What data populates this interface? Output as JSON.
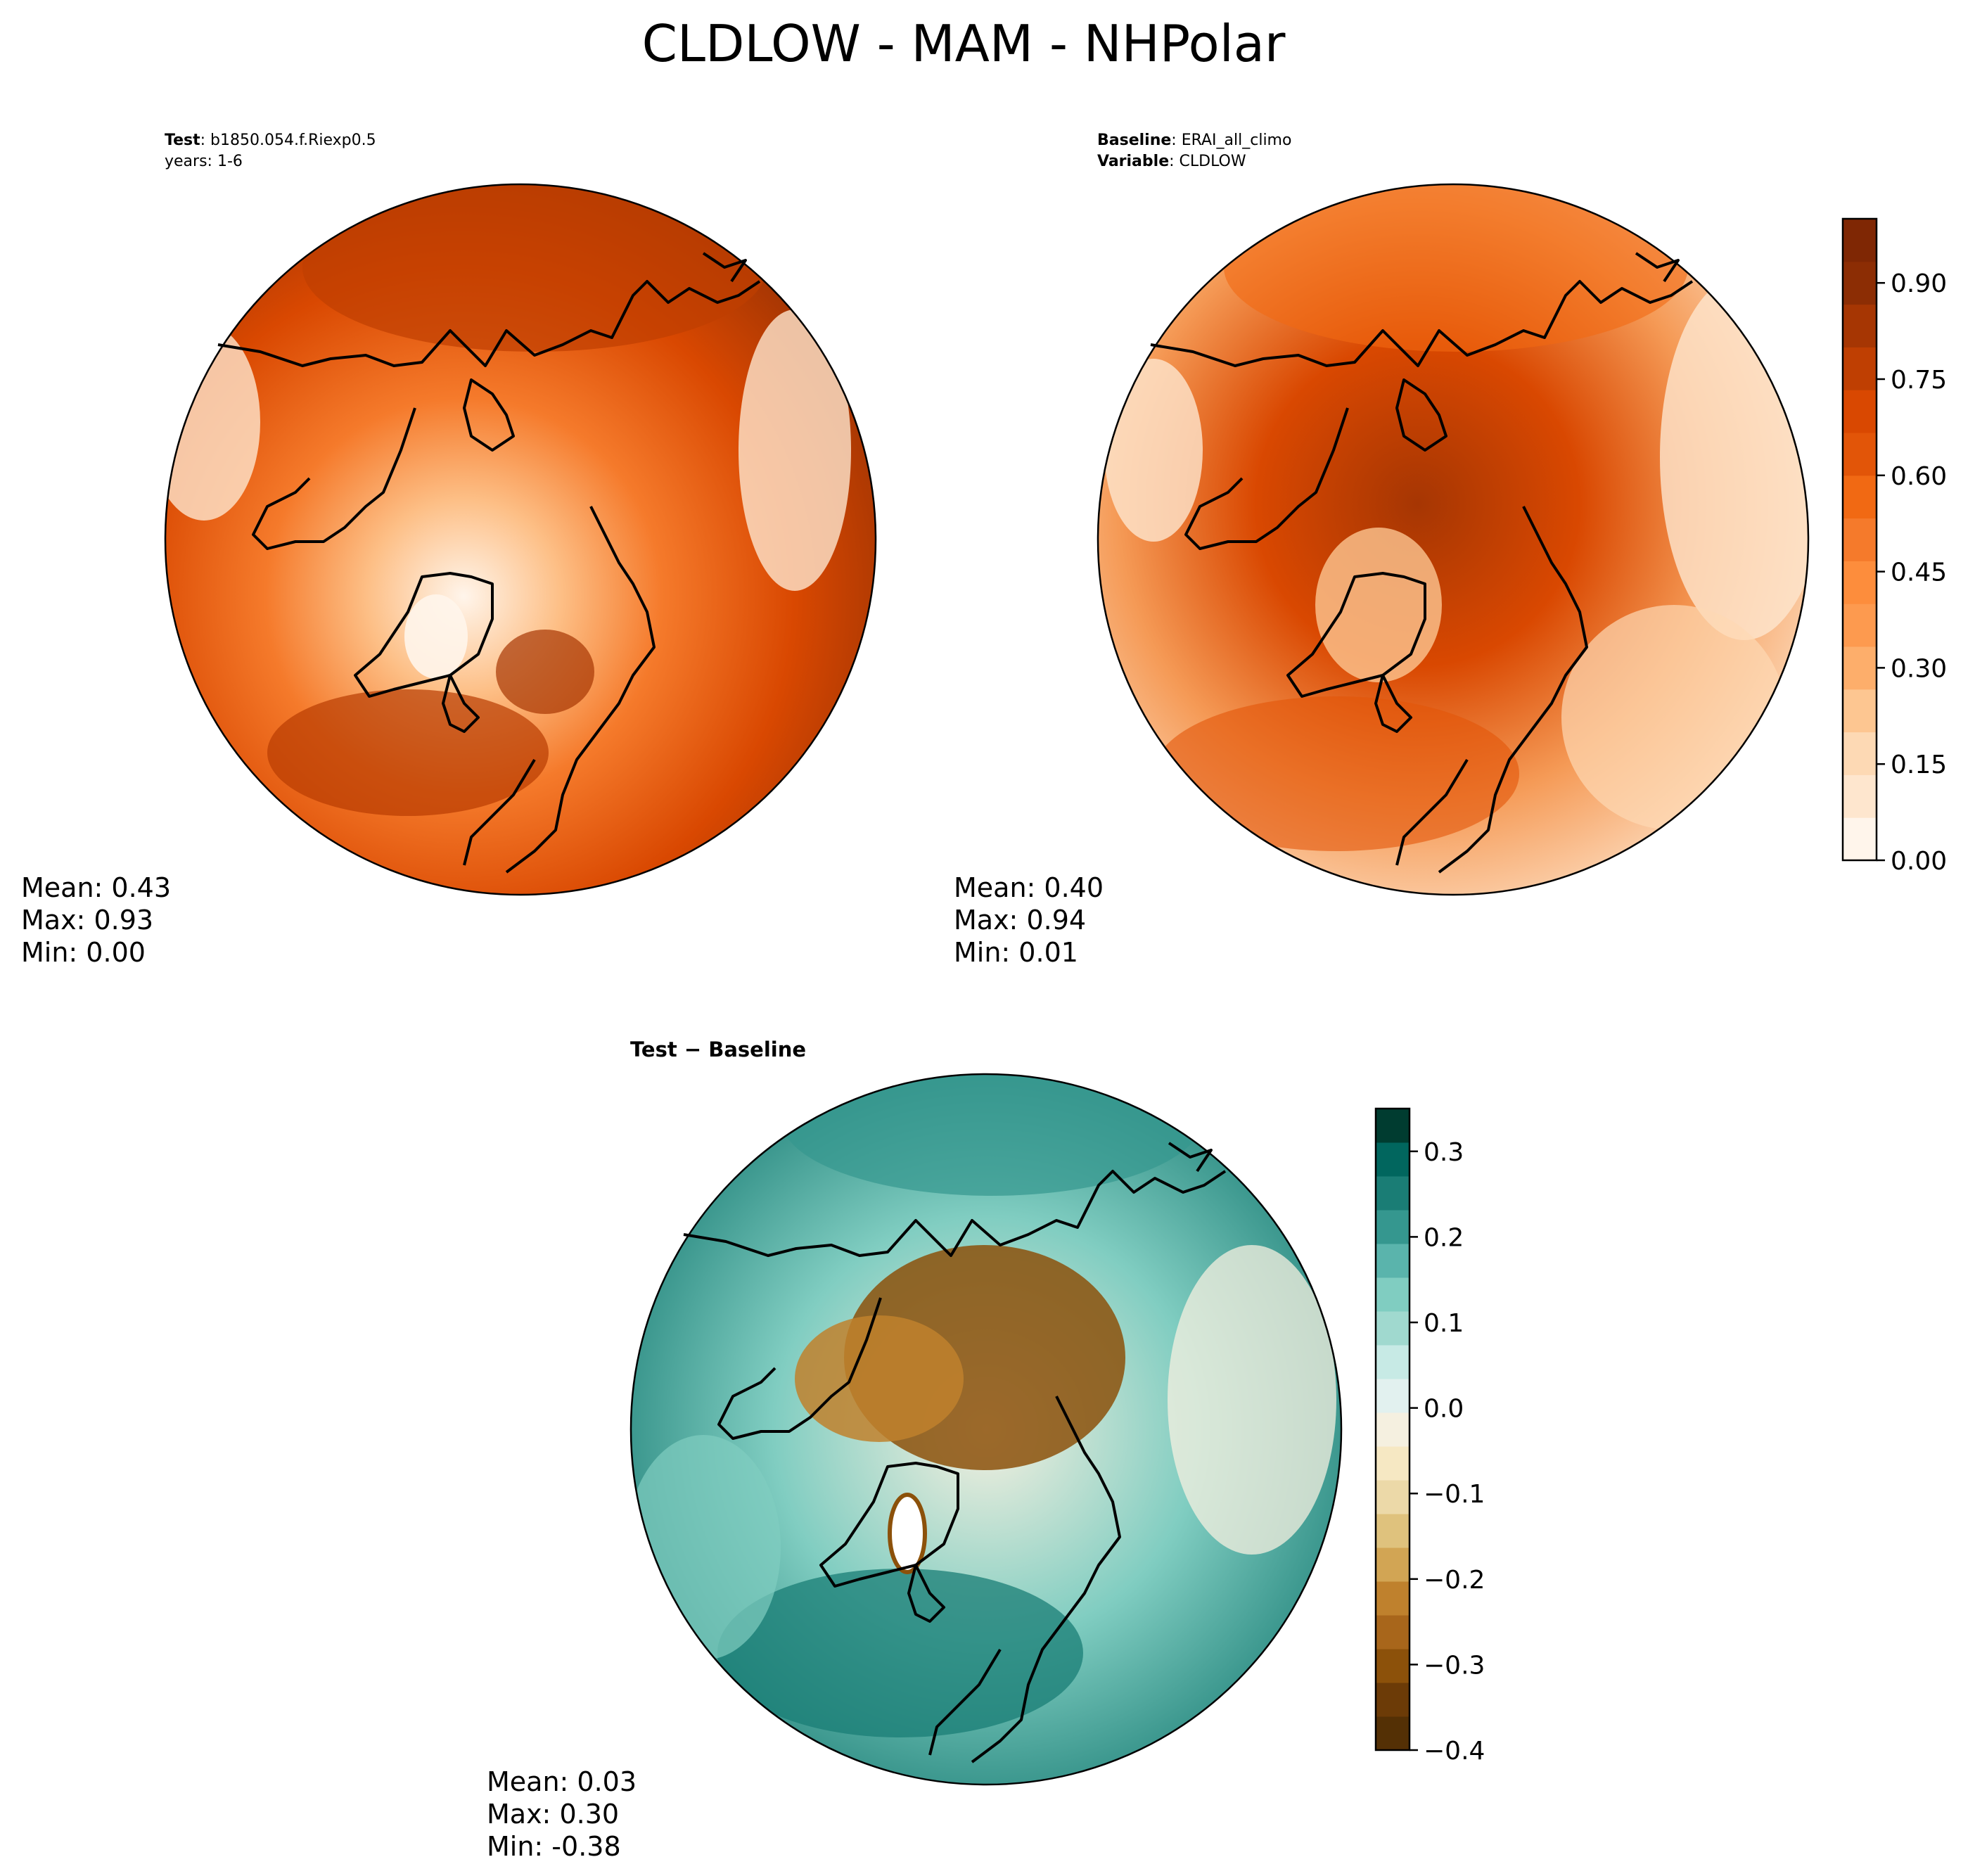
{
  "figure": {
    "title": "CLDLOW - MAM - NHPolar"
  },
  "panels": {
    "test": {
      "label_key": "Test",
      "label_value": ": b1850.054.f.Riexp0.5",
      "years": "years: 1-6",
      "stats": {
        "mean": "Mean:  0.43",
        "max": "Max:  0.93",
        "min": "Min:  0.00"
      }
    },
    "baseline": {
      "label_key": "Baseline",
      "label_value": ": ERAI_all_climo",
      "var_key": "Variable",
      "var_value": ": CLDLOW",
      "stats": {
        "mean": "Mean:  0.40",
        "max": "Max:  0.94",
        "min": "Min:  0.01"
      }
    },
    "diff": {
      "label": "Test − Baseline",
      "stats": {
        "mean": "Mean:  0.03",
        "max": "Max:  0.30",
        "min": "Min: -0.38"
      }
    }
  },
  "colorbars": {
    "main": {
      "ticks": [
        "0.90",
        "0.75",
        "0.60",
        "0.45",
        "0.30",
        "0.15",
        "0.00"
      ],
      "tick_values": [
        0.9,
        0.75,
        0.6,
        0.45,
        0.3,
        0.15,
        0.0
      ],
      "range": [
        0.0,
        1.0
      ],
      "colors": [
        "#fff5eb",
        "#fee6ce",
        "#fdd9b4",
        "#fdc691",
        "#fdae6b",
        "#fd9a4f",
        "#fd8d3c",
        "#f57a2b",
        "#f16913",
        "#e25508",
        "#d94801",
        "#bf3f02",
        "#a63603",
        "#8c2d04",
        "#7f2704"
      ]
    },
    "diff": {
      "ticks": [
        "0.3",
        "0.2",
        "0.1",
        "0.0",
        "−0.1",
        "−0.2",
        "−0.3",
        "−0.4"
      ],
      "tick_values": [
        0.3,
        0.2,
        0.1,
        0.0,
        -0.1,
        -0.2,
        -0.3,
        -0.4
      ],
      "range": [
        -0.4,
        0.35
      ],
      "colors": [
        "#543005",
        "#6c3b07",
        "#8c510a",
        "#a8661b",
        "#bf812d",
        "#d2a554",
        "#dfc27d",
        "#ecd9a8",
        "#f6e8c3",
        "#f5f0e0",
        "#e2f1ef",
        "#c7eae5",
        "#a0d9cf",
        "#80cdc1",
        "#5ab4ac",
        "#35978f",
        "#1a7d75",
        "#01665e",
        "#003c30"
      ]
    }
  }
}
